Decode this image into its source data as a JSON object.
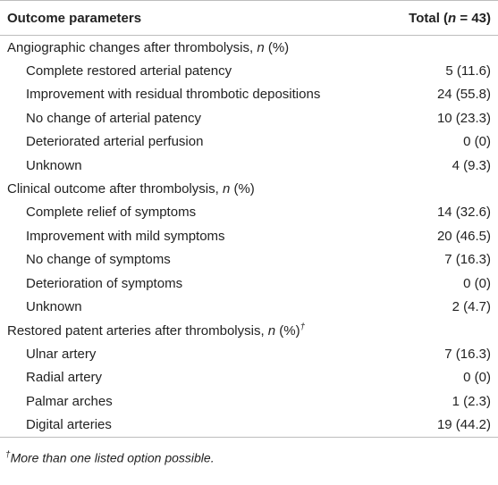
{
  "table": {
    "header": {
      "label": "Outcome parameters",
      "total": {
        "pre": "Total (",
        "italic": "n",
        "post": " = 43)"
      }
    },
    "sections": [
      {
        "title": {
          "pre": "Angiographic changes after thrombolysis, ",
          "italic": "n",
          "post": " (%)"
        },
        "rows": [
          [
            "Complete restored arterial patency",
            "5 (11.6)"
          ],
          [
            "Improvement with residual thrombotic depositions",
            "24 (55.8)"
          ],
          [
            "No change of arterial patency",
            "10 (23.3)"
          ],
          [
            "Deteriorated arterial perfusion",
            "0 (0)"
          ],
          [
            "Unknown",
            "4 (9.3)"
          ]
        ]
      },
      {
        "title": {
          "pre": "Clinical outcome after thrombolysis, ",
          "italic": "n",
          "post": " (%)"
        },
        "rows": [
          [
            "Complete relief of symptoms",
            "14 (32.6)"
          ],
          [
            "Improvement with mild symptoms",
            "20 (46.5)"
          ],
          [
            "No change of symptoms",
            "7 (16.3)"
          ],
          [
            "Deterioration of symptoms",
            "0 (0)"
          ],
          [
            "Unknown",
            "2 (4.7)"
          ]
        ]
      },
      {
        "title": {
          "pre": "Restored patent arteries after thrombolysis, ",
          "italic": "n",
          "post": " (%)",
          "sup": "†"
        },
        "rows": [
          [
            "Ulnar artery",
            "7 (16.3)"
          ],
          [
            "Radial artery",
            "0 (0)"
          ],
          [
            "Palmar arches",
            "1 (2.3)"
          ],
          [
            "Digital arteries",
            "19 (44.2)"
          ]
        ]
      }
    ]
  },
  "footnote": {
    "mark": "†",
    "text": "More than one listed option possible."
  }
}
